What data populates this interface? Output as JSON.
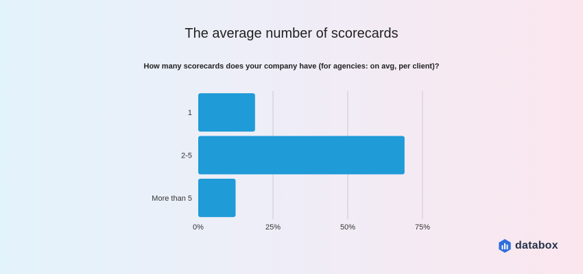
{
  "chart_data": {
    "type": "bar",
    "orientation": "horizontal",
    "title": "The average number of scorecards",
    "subtitle": "How many scorecards does your company have (for agencies: on avg, per client)?",
    "categories": [
      "1",
      "2-5",
      "More than 5"
    ],
    "values": [
      19,
      69,
      12.5
    ],
    "xlim": [
      0,
      75
    ],
    "x_ticks": [
      0,
      25,
      50,
      75
    ],
    "x_tick_labels": [
      "0%",
      "25%",
      "50%",
      "75%"
    ],
    "grid": true,
    "bar_color": "#1f9bd7",
    "grid_color": "#c9c9cf"
  },
  "logo": {
    "name": "databox-logo-icon",
    "text": "databox",
    "color": "#2f6fdc"
  }
}
